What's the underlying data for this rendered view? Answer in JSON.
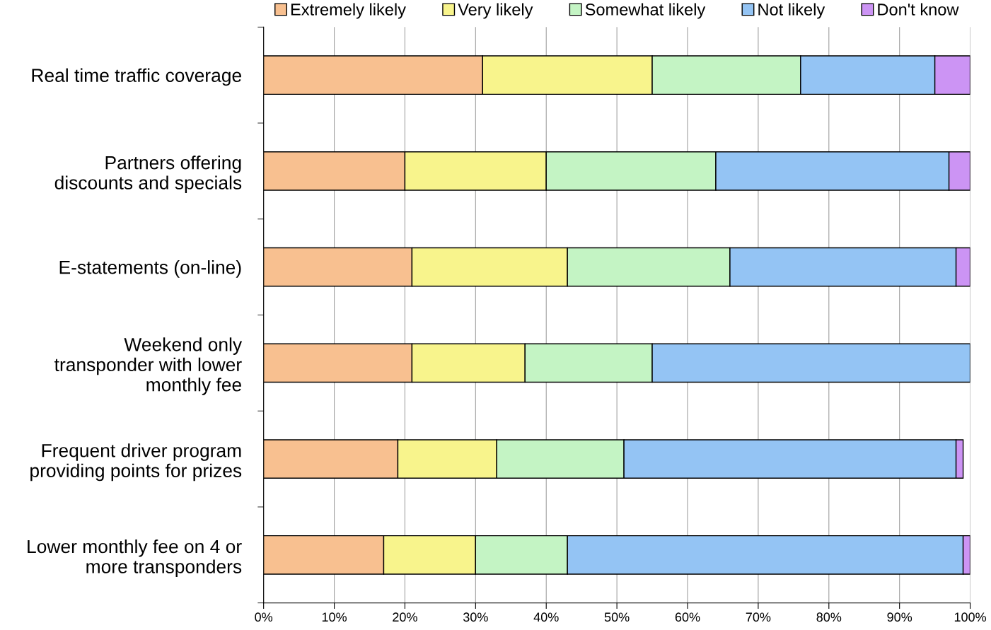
{
  "chart_data": {
    "type": "bar",
    "orientation": "horizontal",
    "stacked": true,
    "categories": [
      "Real time traffic coverage",
      "Partners offering\ndiscounts and specials",
      "E-statements (on-line)",
      "Weekend only\ntransponder with lower\nmonthly fee",
      "Frequent driver program\nproviding points for prizes",
      "Lower monthly fee on 4 or\nmore transponders"
    ],
    "series": [
      {
        "name": "Extremely likely",
        "color": "#f8c090",
        "values": [
          31,
          20,
          21,
          21,
          19,
          17
        ]
      },
      {
        "name": "Very likely",
        "color": "#f8f48c",
        "values": [
          24,
          20,
          22,
          16,
          14,
          13
        ]
      },
      {
        "name": "Somewhat likely",
        "color": "#c4f4c4",
        "values": [
          21,
          24,
          23,
          18,
          18,
          13
        ]
      },
      {
        "name": "Not likely",
        "color": "#94c4f4",
        "values": [
          19,
          33,
          32,
          45,
          47,
          56
        ]
      },
      {
        "name": "Don't know",
        "color": "#cc94f4",
        "values": [
          5,
          3,
          2,
          0,
          1,
          1
        ]
      }
    ],
    "xlim": [
      0,
      100
    ],
    "xticks": [
      {
        "value": 0,
        "label": "0%"
      },
      {
        "value": 10,
        "label": "10%"
      },
      {
        "value": 20,
        "label": "20%"
      },
      {
        "value": 30,
        "label": "30%"
      },
      {
        "value": 40,
        "label": "40%"
      },
      {
        "value": 50,
        "label": "50%"
      },
      {
        "value": 60,
        "label": "60%"
      },
      {
        "value": 70,
        "label": "70%"
      },
      {
        "value": 80,
        "label": "80%"
      },
      {
        "value": 90,
        "label": "90%"
      },
      {
        "value": 100,
        "label": "100%"
      }
    ],
    "grid": "x",
    "legend": "top"
  }
}
